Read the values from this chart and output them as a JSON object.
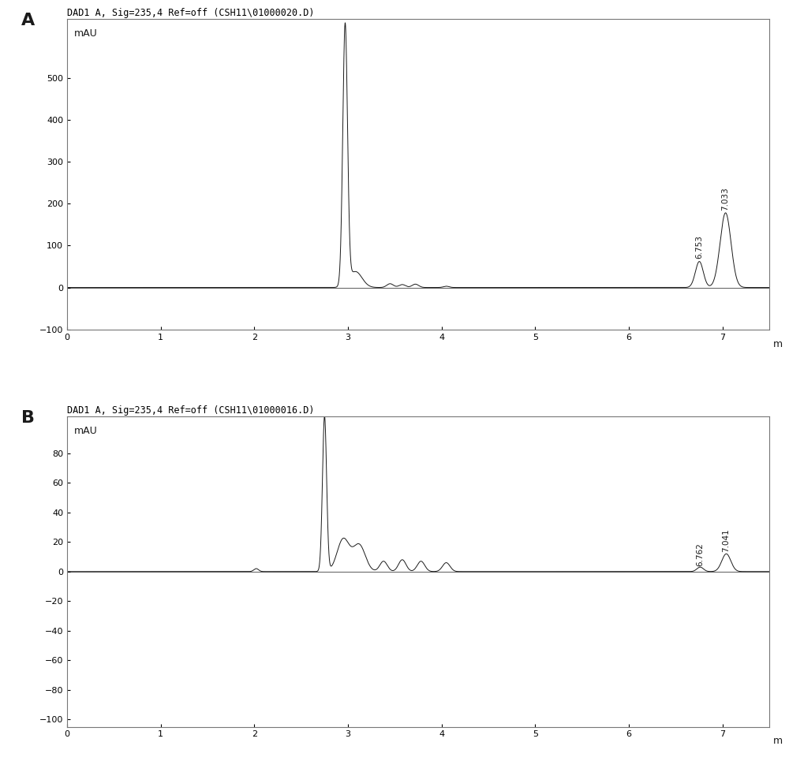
{
  "panel_A": {
    "title": "DAD1 A, Sig=235,4 Ref=off (CSH11\\01000020.D)",
    "xlim": [
      0,
      7.5
    ],
    "ylim": [
      -100,
      640
    ],
    "yticks": [
      -100,
      0,
      100,
      200,
      300,
      400,
      500
    ],
    "xticks": [
      0,
      1,
      2,
      3,
      4,
      5,
      6,
      7
    ],
    "peak2_label": "6.753",
    "peak3_label": "7.033",
    "label": "A"
  },
  "panel_B": {
    "title": "DAD1 A, Sig=235,4 Ref=off (CSH11\\01000016.D)",
    "xlim": [
      0,
      7.5
    ],
    "ylim": [
      -105,
      105
    ],
    "yticks": [
      -100,
      -80,
      -60,
      -40,
      -20,
      0,
      20,
      40,
      60,
      80
    ],
    "xticks": [
      0,
      1,
      2,
      3,
      4,
      5,
      6,
      7
    ],
    "peak2_label": "6.762",
    "peak3_label": "7.041",
    "label": "B"
  },
  "line_color": "#1a1a1a",
  "bg_color": "#ffffff",
  "border_color": "#777777",
  "label_fontsize": 16,
  "title_fontsize": 8.5,
  "tick_fontsize": 8,
  "axis_label_fontsize": 9
}
